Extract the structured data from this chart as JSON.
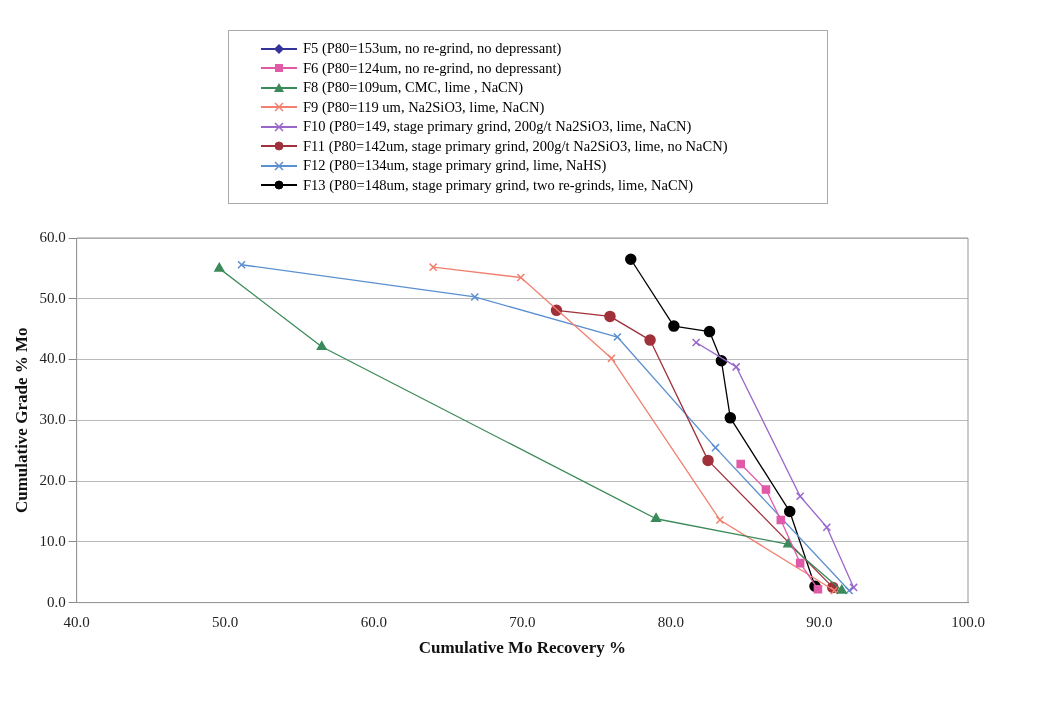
{
  "chart_data": {
    "type": "line",
    "xlabel": "Cumulative Mo Recovery %",
    "ylabel": "Cumulative Grade % Mo",
    "xlim": [
      40,
      100
    ],
    "xticks": [
      {
        "value": 40,
        "label": "40.0"
      },
      {
        "value": 50,
        "label": "50.0"
      },
      {
        "value": 60,
        "label": "60.0"
      },
      {
        "value": 70,
        "label": "70.0"
      },
      {
        "value": 80,
        "label": "80.0"
      },
      {
        "value": 90,
        "label": "90.0"
      },
      {
        "value": 100,
        "label": "100.0"
      }
    ],
    "ylim": [
      0,
      60
    ],
    "yticks": [
      {
        "value": 0,
        "label": "0.0"
      },
      {
        "value": 10,
        "label": "10.0"
      },
      {
        "value": 20,
        "label": "20.0"
      },
      {
        "value": 30,
        "label": "30.0"
      },
      {
        "value": 40,
        "label": "40.0"
      },
      {
        "value": 50,
        "label": "50.0"
      },
      {
        "value": 60,
        "label": "60.0"
      }
    ],
    "grid": "y",
    "legend": "top",
    "series": [
      {
        "name": "F5 (P80=153um, no re-grind, no depressant)",
        "color": "#333399",
        "marker": "diamond"
      },
      {
        "name": "F6 (P80=124um, no re-grind, no depressant)",
        "color": "#e05aa8",
        "marker": "square",
        "x": [
          84.7,
          86.4,
          87.4,
          88.7,
          89.9
        ],
        "values": [
          22.8,
          18.6,
          13.6,
          6.5,
          2.2
        ]
      },
      {
        "name": "F8 (P80=109um, CMC, lime , NaCN)",
        "color": "#3a8a5a",
        "marker": "triangle",
        "x": [
          49.6,
          56.5,
          79.0,
          87.9,
          91.5
        ],
        "values": [
          55.0,
          42.1,
          13.8,
          9.6,
          2.0
        ]
      },
      {
        "name": "F9 (P80=119 um, Na2SiO3, lime, NaCN)",
        "color": "#f08070",
        "marker": "cross",
        "x": [
          64.0,
          69.9,
          76.0,
          83.3,
          91.0
        ],
        "values": [
          55.2,
          53.5,
          40.2,
          13.6,
          2.0
        ]
      },
      {
        "name": "F10 (P80=149, stage primary grind, 200g/t Na2SiO3, lime, NaCN)",
        "color": "#9966cc",
        "marker": "cross",
        "x": [
          81.7,
          84.4,
          88.7,
          90.5,
          92.3
        ],
        "values": [
          42.8,
          38.8,
          17.5,
          12.4,
          2.5
        ]
      },
      {
        "name": "F11 (P80=142um, stage primary grind, 200g/t Na2SiO3, lime, no NaCN)",
        "color": "#a0303a",
        "marker": "circle",
        "x": [
          72.3,
          75.9,
          78.6,
          82.5,
          90.9
        ],
        "values": [
          48.1,
          47.1,
          43.2,
          23.4,
          2.5
        ]
      },
      {
        "name": "F12 (P80=134um, stage primary grind, lime, NaHS)",
        "color": "#5b8fd0",
        "marker": "cross",
        "x": [
          51.1,
          66.8,
          76.4,
          83.0,
          92.0
        ],
        "values": [
          55.6,
          50.3,
          43.7,
          25.5,
          2.0
        ]
      },
      {
        "name": "F13 (P80=148um, stage primary grind, two re-grinds, lime, NaCN)",
        "color": "#000000",
        "marker": "circle",
        "x": [
          77.3,
          80.2,
          82.6,
          83.4,
          84.0,
          88.0,
          89.7
        ],
        "values": [
          56.5,
          45.5,
          44.6,
          39.8,
          30.4,
          15.0,
          2.7
        ]
      }
    ]
  }
}
